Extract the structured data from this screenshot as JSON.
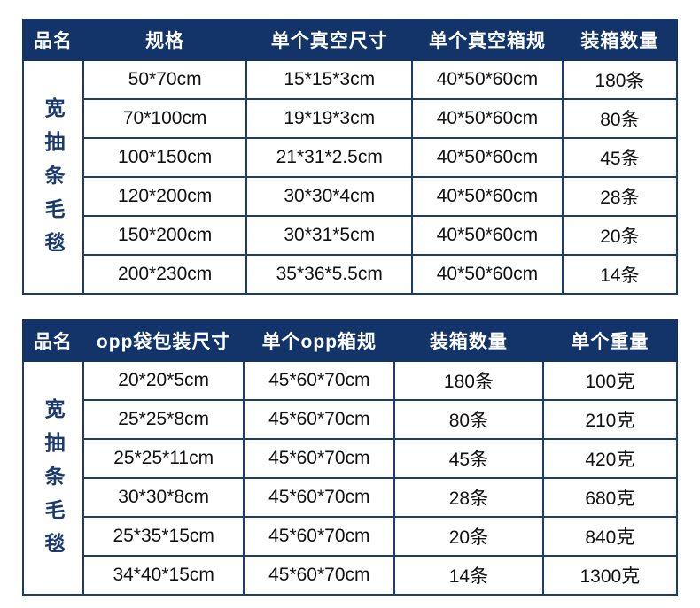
{
  "colors": {
    "page_bg": "#ffffff",
    "header_bg": "#123468",
    "header_text": "#ffffff",
    "cell_border": "#1d3c6e",
    "product_name_text": "#1a3a6e",
    "cell_text": "#111111"
  },
  "vacuum_table": {
    "product_name": "宽抽条毛毯",
    "headers": [
      "品名",
      "规格",
      "单个真空尺寸",
      "单个真空箱规",
      "装箱数量"
    ],
    "rows": [
      [
        "50*70cm",
        "15*15*3cm",
        "40*50*60cm",
        "180条"
      ],
      [
        "70*100cm",
        "19*19*3cm",
        "40*50*60cm",
        "80条"
      ],
      [
        "100*150cm",
        "21*31*2.5cm",
        "40*50*60cm",
        "45条"
      ],
      [
        "120*200cm",
        "30*30*4cm",
        "40*50*60cm",
        "28条"
      ],
      [
        "150*200cm",
        "30*31*5cm",
        "40*50*60cm",
        "20条"
      ],
      [
        "200*230cm",
        "35*36*5.5cm",
        "40*50*60cm",
        "14条"
      ]
    ]
  },
  "opp_table": {
    "product_name": "宽抽条毛毯",
    "headers": [
      "品名",
      "opp袋包装尺寸",
      "单个opp箱规",
      "装箱数量",
      "单个重量"
    ],
    "rows": [
      [
        "20*20*5cm",
        "45*60*70cm",
        "180条",
        "100克"
      ],
      [
        "25*25*8cm",
        "45*60*70cm",
        "80条",
        "210克"
      ],
      [
        "25*25*11cm",
        "45*60*70cm",
        "45条",
        "420克"
      ],
      [
        "30*30*8cm",
        "45*60*70cm",
        "28条",
        "680克"
      ],
      [
        "25*35*15cm",
        "45*60*70cm",
        "20条",
        "840克"
      ],
      [
        "34*40*15cm",
        "45*60*70cm",
        "14条",
        "1300克"
      ]
    ]
  }
}
